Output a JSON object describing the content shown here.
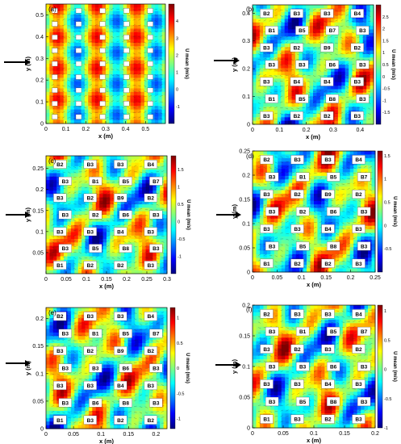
{
  "colors": {
    "background": "#ffffff",
    "colormap": [
      "#00007f",
      "#0000ff",
      "#007fff",
      "#00ffff",
      "#7fff7f",
      "#ffff00",
      "#ff7f00",
      "#ff0000",
      "#7f0000"
    ],
    "blockFill": "#ffffff",
    "arrow": "#000000"
  },
  "chart_data": [
    {
      "type": "heatmap",
      "panel_label": "(a)",
      "xlabel": "x (m)",
      "ylabel": "y (m)",
      "colorbar_label": "U mean (m/s)",
      "xlim": [
        0,
        0.6
      ],
      "ylim": [
        0,
        0.55
      ],
      "xticks": [
        "0",
        "0.1",
        "0.2",
        "0.3",
        "0.4",
        "0.5"
      ],
      "yticks": [
        "0",
        "0.1",
        "0.2",
        "0.3",
        "0.4",
        "0.5"
      ],
      "colorbar_range": [
        -2,
        5
      ],
      "colorbar_ticks": [
        "-1",
        "0",
        "1",
        "2",
        "3",
        "4"
      ],
      "grid_cols": 5,
      "grid_rows": 9,
      "block_labels": [],
      "flow_direction": "left-to-right"
    },
    {
      "type": "heatmap",
      "panel_label": "(b)",
      "xlabel": "x (m)",
      "ylabel": "y (m)",
      "colorbar_label": "U mean (m/s)",
      "xlim": [
        0,
        0.45
      ],
      "ylim": [
        0,
        0.43
      ],
      "xticks": [
        "0",
        "0.1",
        "0.2",
        "0.3",
        "0.4"
      ],
      "yticks": [
        "0",
        "0.1",
        "0.2",
        "0.3",
        "0.4"
      ],
      "colorbar_range": [
        -2,
        3
      ],
      "colorbar_ticks": [
        "-1.5",
        "-1",
        "-0.5",
        "0",
        "0.5",
        "1",
        "1.5",
        "2",
        "2.5"
      ],
      "grid_cols": 4,
      "grid_rows": 7,
      "block_labels": [
        "B2",
        "B3",
        "B3",
        "B4",
        "B1",
        "B5",
        "B7",
        "B3",
        "B3",
        "B2",
        "B9",
        "B2",
        "B3",
        "B3",
        "B6",
        "B3",
        "B3",
        "B4",
        "B4",
        "B3",
        "B1",
        "B5",
        "B8",
        "B3",
        "B3",
        "B2",
        "B2",
        "B3"
      ],
      "flow_direction": "left-to-right"
    },
    {
      "type": "heatmap",
      "panel_label": "(c)",
      "xlabel": "x (m)",
      "ylabel": "y (m)",
      "colorbar_label": "U mean (m/s)",
      "xlim": [
        0,
        0.3
      ],
      "ylim": [
        0,
        0.28
      ],
      "xticks": [
        "0",
        "0.05",
        "0.1",
        "0.15",
        "0.2",
        "0.25",
        "0.3"
      ],
      "yticks": [
        "0.05",
        "0.1",
        "0.15",
        "0.2",
        "0.25"
      ],
      "colorbar_range": [
        -1.5,
        1.9
      ],
      "colorbar_ticks": [
        "-1",
        "-0.5",
        "0",
        "0.5",
        "1",
        "1.5"
      ],
      "grid_cols": 4,
      "grid_rows": 7,
      "block_labels": [
        "B2",
        "B3",
        "B3",
        "B4",
        "B3",
        "B1",
        "B5",
        "B7",
        "B3",
        "B2",
        "B9",
        "B2",
        "B3",
        "B2",
        "B6",
        "B3",
        "B3",
        "B3",
        "B4",
        "B3",
        "B3",
        "B5",
        "B8",
        "B3",
        "B1",
        "B2",
        "B2",
        "B3"
      ],
      "flow_direction": "left-to-right"
    },
    {
      "type": "heatmap",
      "panel_label": "(d)",
      "xlabel": "x (m)",
      "ylabel": "y (m)",
      "colorbar_label": "U mean (m/s)",
      "xlim": [
        0,
        0.25
      ],
      "ylim": [
        0,
        0.25
      ],
      "xticks": [
        "0",
        "0.05",
        "0.1",
        "0.15",
        "0.2",
        "0.25"
      ],
      "yticks": [
        "0",
        "0.05",
        "0.1",
        "0.15",
        "0.2",
        "0.25"
      ],
      "colorbar_range": [
        -1,
        1.6
      ],
      "colorbar_ticks": [
        "-0.5",
        "0",
        "0.5",
        "1",
        "1.5"
      ],
      "grid_cols": 4,
      "grid_rows": 7,
      "block_labels": [
        "B2",
        "B3",
        "B3",
        "B4",
        "B3",
        "B1",
        "B5",
        "B7",
        "B3",
        "B2",
        "B9",
        "B2",
        "B3",
        "B2",
        "B6",
        "B3",
        "B3",
        "B3",
        "B4",
        "B3",
        "B3",
        "B5",
        "B8",
        "B3",
        "B1",
        "B2",
        "B2",
        "B3"
      ],
      "flow_direction": "left-to-right"
    },
    {
      "type": "heatmap",
      "panel_label": "(e)",
      "xlabel": "x (m)",
      "ylabel": "y (m)",
      "colorbar_label": "U mean (m/s)",
      "xlim": [
        0,
        0.22
      ],
      "ylim": [
        0,
        0.22
      ],
      "xticks": [
        "0",
        "0.05",
        "0.1",
        "0.15",
        "0.2"
      ],
      "yticks": [
        "0",
        "0.05",
        "0.1",
        "0.15",
        "0.2"
      ],
      "colorbar_range": [
        -1.2,
        1.2
      ],
      "colorbar_ticks": [
        "-1",
        "-0.5",
        "0",
        "0.5",
        "1"
      ],
      "grid_cols": 4,
      "grid_rows": 7,
      "block_labels": [
        "B2",
        "B3",
        "B3",
        "B4",
        "B3",
        "B1",
        "B5",
        "B7",
        "B3",
        "B2",
        "B9",
        "B2",
        "B3",
        "B3",
        "B6",
        "B3",
        "B3",
        "B3",
        "B4",
        "B3",
        "B3",
        "B6",
        "B8",
        "B3",
        "B1",
        "B3",
        "B2",
        "B2"
      ],
      "flow_direction": "left-to-right"
    },
    {
      "type": "heatmap",
      "panel_label": "(f)",
      "xlabel": "x (m)",
      "ylabel": "y (m)",
      "colorbar_label": "U mean (m/s)",
      "xlim": [
        0,
        0.2
      ],
      "ylim": [
        0,
        0.2
      ],
      "xticks": [
        "0",
        "0.05",
        "0.1",
        "0.15",
        "0.2"
      ],
      "yticks": [
        "0",
        "0.05",
        "0.1",
        "0.15",
        "0.2"
      ],
      "colorbar_range": [
        -1,
        1.1
      ],
      "colorbar_ticks": [
        "-1",
        "-0.5",
        "0",
        "0.5",
        "1"
      ],
      "grid_cols": 4,
      "grid_rows": 7,
      "block_labels": [
        "B2",
        "B3",
        "B3",
        "B4",
        "B3",
        "B1",
        "B5",
        "B7",
        "B3",
        "B2",
        "B3",
        "B2",
        "B3",
        "B3",
        "B6",
        "B3",
        "B3",
        "B3",
        "B4",
        "B3",
        "B3",
        "B5",
        "B8",
        "B3",
        "B1",
        "B3",
        "B2",
        "B3"
      ],
      "flow_direction": "left-to-right"
    }
  ]
}
